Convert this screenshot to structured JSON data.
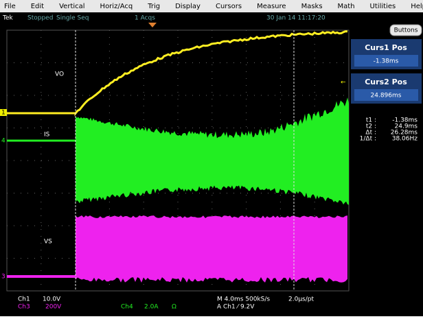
{
  "menu": [
    "File",
    "Edit",
    "Vertical",
    "Horiz/Acq",
    "Trig",
    "Display",
    "Cursors",
    "Measure",
    "Masks",
    "Math",
    "Utilities",
    "Help"
  ],
  "status": {
    "brand": "Tek",
    "state": "Stopped",
    "mode": "Single Seq",
    "acquisitions": "1 Acqs",
    "timestamp": "30 Jan 14 11:17:20"
  },
  "traces": {
    "labels": [
      "VO",
      "IS",
      "VS"
    ],
    "markers": [
      "1",
      "4",
      "3"
    ]
  },
  "side": {
    "button": "Buttons",
    "curs1": {
      "title": "Curs1 Pos",
      "value": "-1.38ms"
    },
    "curs2": {
      "title": "Curs2 Pos",
      "value": "24.896ms"
    },
    "readouts": [
      [
        "t1 :",
        "-1.38ms"
      ],
      [
        "t2 :",
        "24.9ms"
      ],
      [
        "Δt :",
        "26.28ms"
      ],
      [
        "1/Δt :",
        "38.06Hz"
      ]
    ]
  },
  "bottom": {
    "ch1": [
      "Ch1",
      "10.0V"
    ],
    "ch3": [
      "Ch3",
      "200V"
    ],
    "ch4": [
      "Ch4",
      "2.0A",
      "Ω"
    ],
    "horizontal": "M 4.0ms 500kS/s",
    "resolution": "2.0μs/pt",
    "trigger": "A Ch1 ⁄ 9.2V"
  }
}
